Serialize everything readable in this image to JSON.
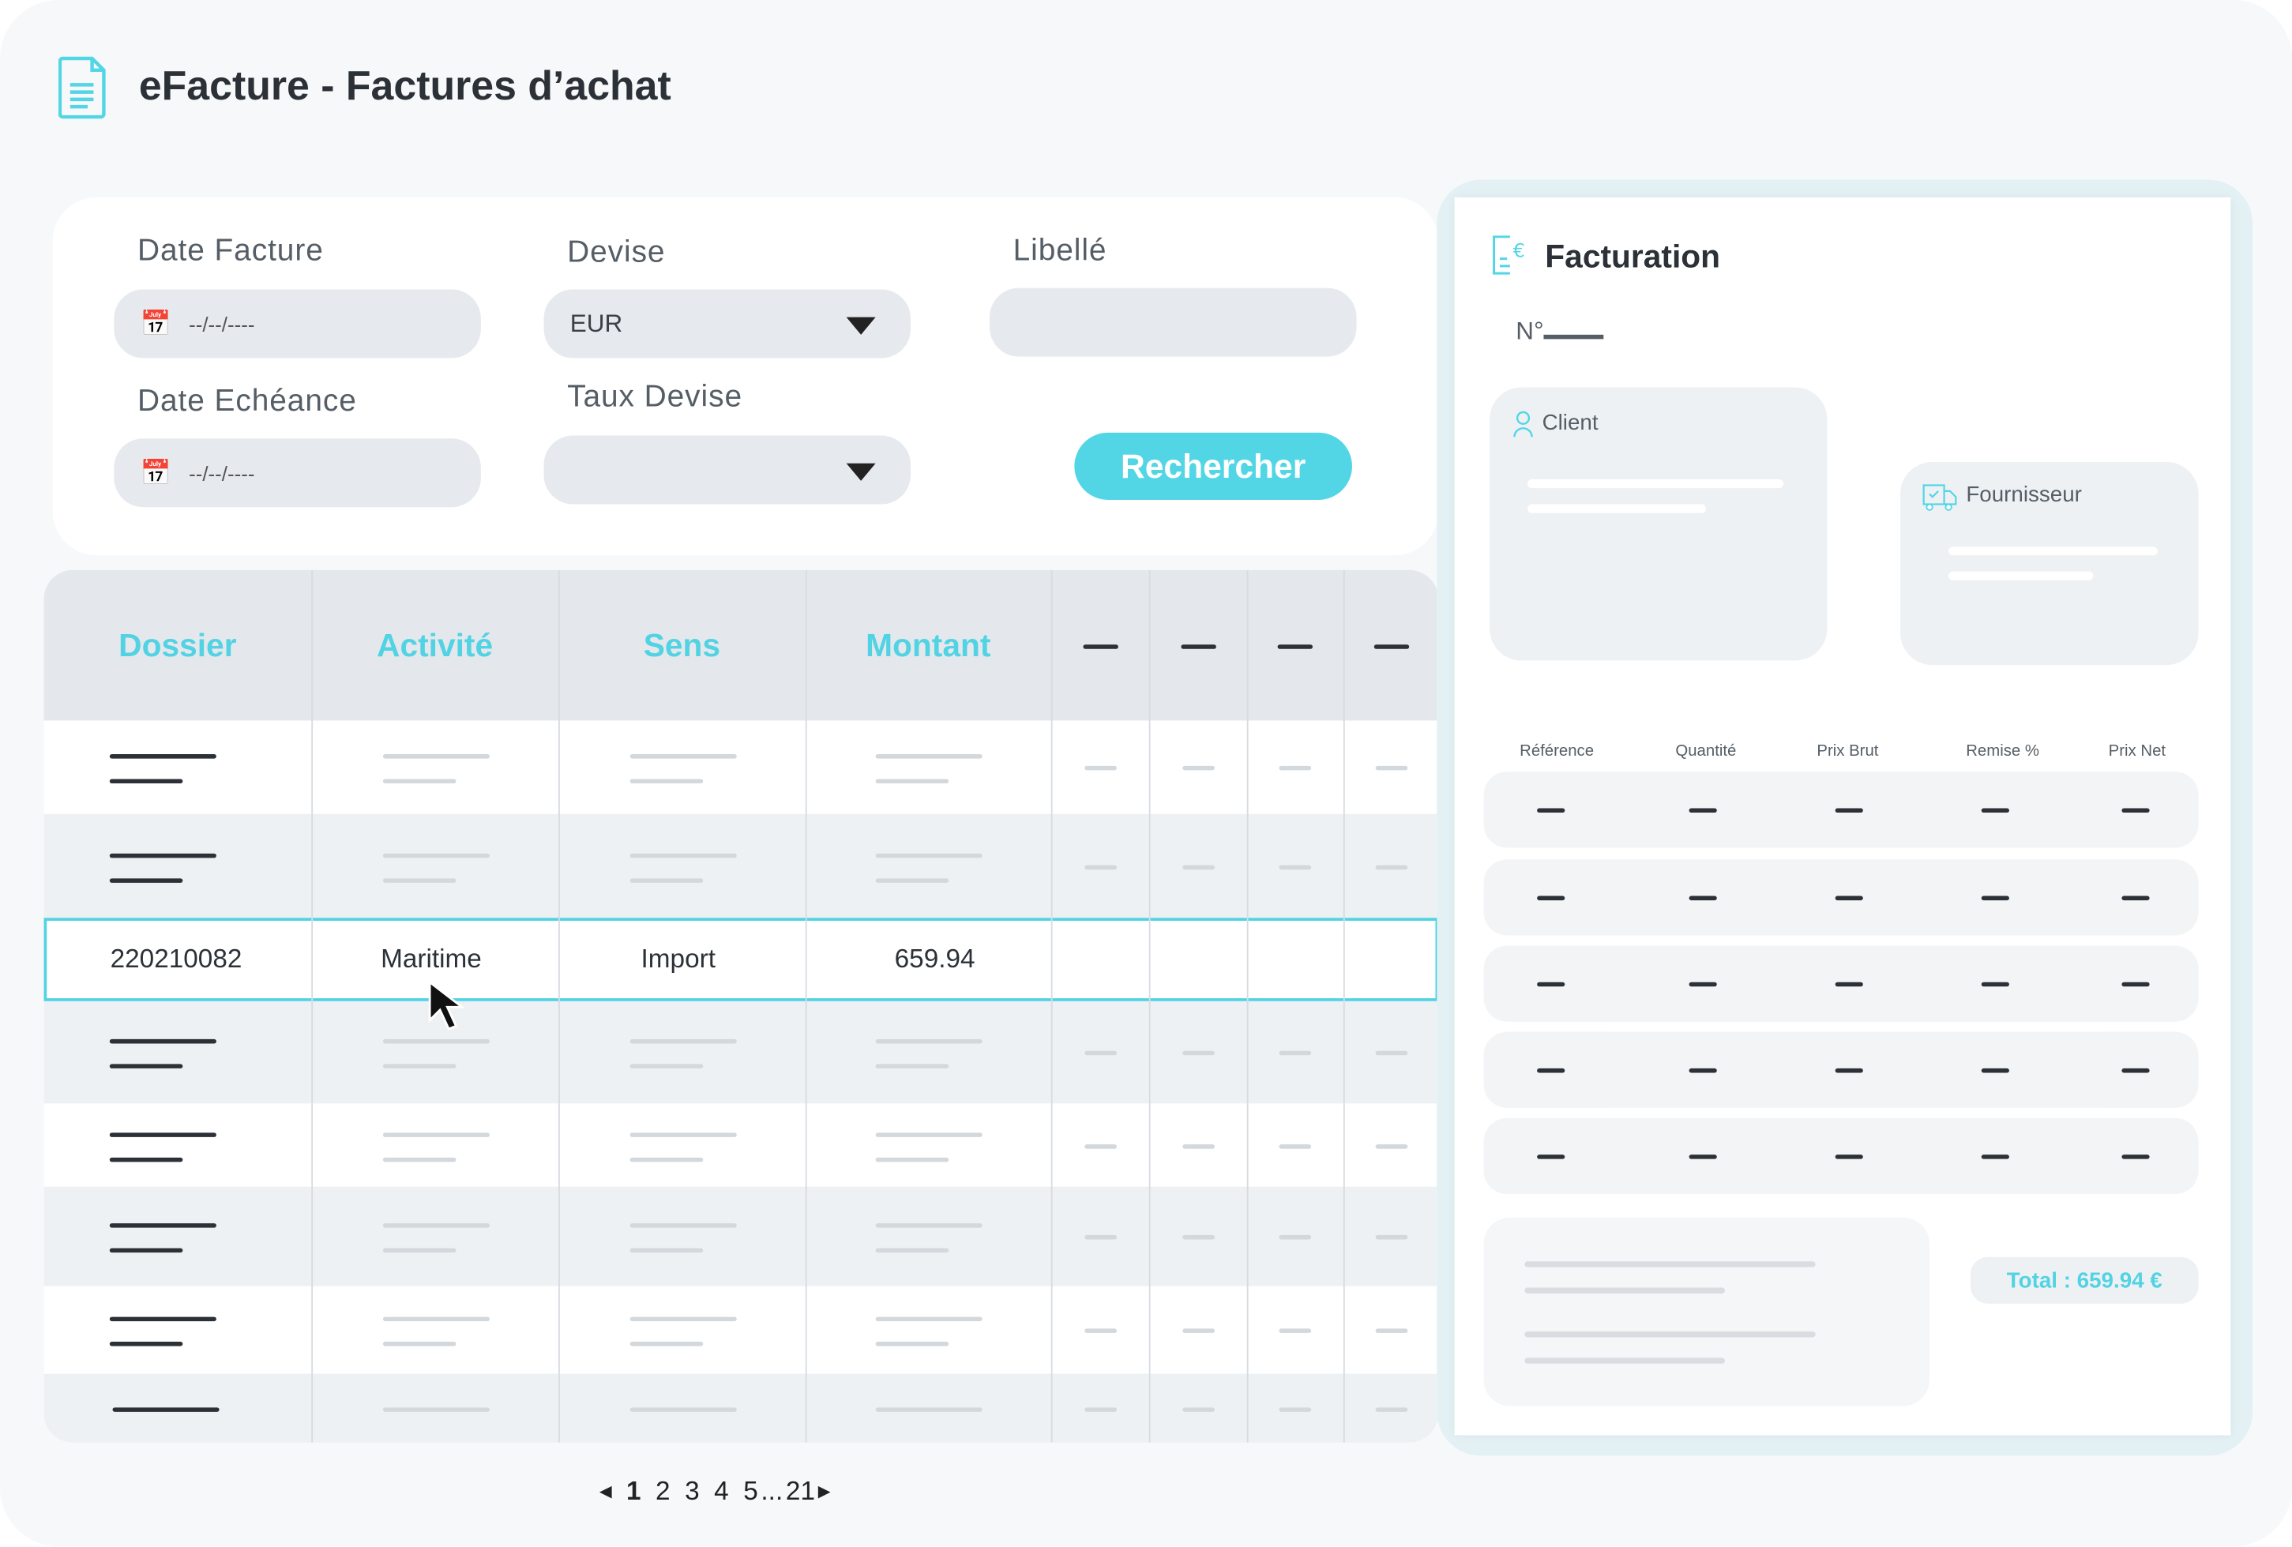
{
  "header": {
    "title": "eFacture - Factures d’achat",
    "icon": "document-icon"
  },
  "filters": {
    "date_facture": {
      "label": "Date Facture",
      "value": "--/--/----"
    },
    "devise": {
      "label": "Devise",
      "value": "EUR"
    },
    "libelle": {
      "label": "Libellé",
      "value": ""
    },
    "date_echeance": {
      "label": "Date Echéance",
      "value": "--/--/----"
    },
    "taux_devise": {
      "label": "Taux Devise",
      "value": ""
    },
    "search_button": "Rechercher"
  },
  "table": {
    "columns": [
      "Dossier",
      "Activité",
      "Sens",
      "Montant"
    ],
    "selected_row": {
      "dossier": "220210082",
      "activite": "Maritime",
      "sens": "Import",
      "montant": "659.94"
    }
  },
  "pagination": {
    "current": "1",
    "pages": [
      "2",
      "3",
      "4",
      "5"
    ],
    "ellipsis": "...",
    "last": "21"
  },
  "facturation": {
    "title": "Facturation",
    "number_label": "N°",
    "client_label": "Client",
    "fournisseur_label": "Fournisseur",
    "columns": [
      "Référence",
      "Quantité",
      "Prix Brut",
      "Remise %",
      "Prix Net"
    ],
    "total": "Total : 659.94 €"
  },
  "colors": {
    "accent": "#52d6e6",
    "text": "#2b3137"
  }
}
